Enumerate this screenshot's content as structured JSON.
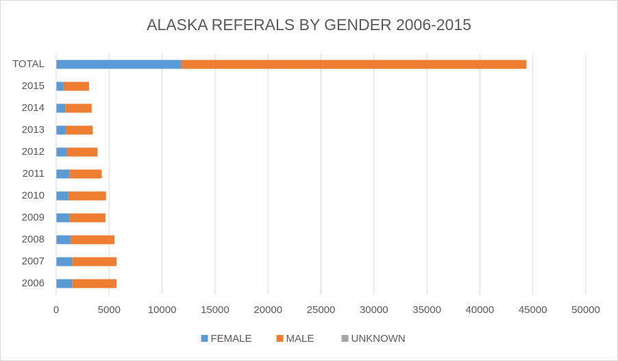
{
  "chart_data": {
    "type": "bar",
    "orientation": "horizontal",
    "stacked": true,
    "title": "ALASKA REFERALS BY GENDER 2006-2015",
    "categories": [
      "TOTAL",
      "2015",
      "2014",
      "2013",
      "2012",
      "2011",
      "2010",
      "2009",
      "2008",
      "2007",
      "2006"
    ],
    "series": [
      {
        "name": "FEMALE",
        "color": "#5b9bd5",
        "values": [
          11800,
          700,
          850,
          900,
          1000,
          1250,
          1150,
          1250,
          1350,
          1500,
          1500
        ]
      },
      {
        "name": "MALE",
        "color": "#ed7d31",
        "values": [
          32600,
          2400,
          2500,
          2550,
          2900,
          3050,
          3550,
          3400,
          4150,
          4200,
          4200
        ]
      },
      {
        "name": "UNKNOWN",
        "color": "#a5a5a5",
        "values": [
          0,
          0,
          0,
          0,
          0,
          0,
          0,
          0,
          0,
          0,
          0
        ]
      }
    ],
    "xlim": [
      0,
      50000
    ],
    "xticks": [
      0,
      5000,
      10000,
      15000,
      20000,
      25000,
      30000,
      35000,
      40000,
      45000,
      50000
    ],
    "grid": true,
    "legend": "bottom"
  }
}
